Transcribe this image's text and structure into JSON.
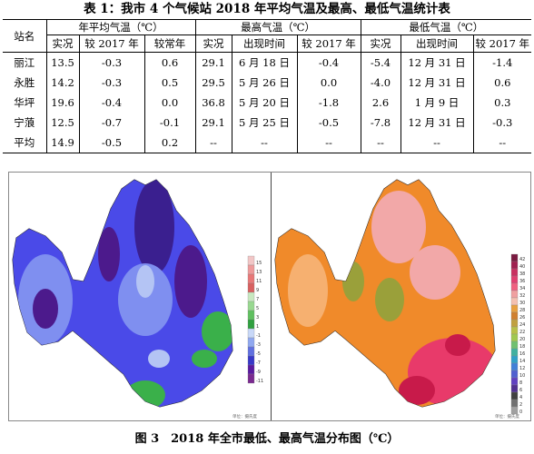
{
  "table": {
    "title": "表 1：我市 4 个气候站 2018 年平均气温及最高、最低气温统计表",
    "station_header": "站名",
    "groups": [
      {
        "label": "年平均气温（℃）",
        "cols": [
          "实况",
          "较 2017 年",
          "较常年"
        ]
      },
      {
        "label": "最高气温（℃）",
        "cols": [
          "实况",
          "出现时间",
          "较 2017 年"
        ]
      },
      {
        "label": "最低气温（℃）",
        "cols": [
          "实况",
          "出现时间",
          "较 2017 年"
        ]
      }
    ],
    "rows": [
      {
        "station": "丽江",
        "cells": [
          "13.5",
          "-0.3",
          "0.6",
          "29.1",
          "6 月 18 日",
          "-0.4",
          "-5.4",
          "12 月 31 日",
          "-1.4"
        ]
      },
      {
        "station": "永胜",
        "cells": [
          "14.2",
          "-0.3",
          "0.5",
          "29.5",
          "5 月 26 日",
          "0.0",
          "-4.0",
          "12 月 31 日",
          "0.6"
        ]
      },
      {
        "station": "华坪",
        "cells": [
          "19.6",
          "-0.4",
          "0.0",
          "36.8",
          "5 月 20 日",
          "-1.8",
          "2.6",
          "1 月 9 日",
          "0.3"
        ]
      },
      {
        "station": "宁蒗",
        "cells": [
          "12.5",
          "-0.7",
          "-0.1",
          "29.1",
          "5 月 25 日",
          "-0.5",
          "-7.8",
          "12 月 31 日",
          "-0.3"
        ]
      },
      {
        "station": "平均",
        "cells": [
          "14.9",
          "-0.5",
          "0.2",
          "--",
          "--",
          "--",
          "--",
          "--",
          "--"
        ]
      }
    ]
  },
  "maps": {
    "left_legend": {
      "labels": [
        "15",
        "13",
        "11",
        "9",
        "7",
        "5",
        "3",
        "1",
        "-1",
        "-3",
        "-5",
        "-7",
        "-9",
        "-11"
      ],
      "colors": [
        "#f2c6c6",
        "#ee9a9a",
        "#e87878",
        "#d86060",
        "#c8e8c0",
        "#98d890",
        "#60c060",
        "#30a040",
        "#c8d8f8",
        "#90a8f0",
        "#6070e0",
        "#3838c8",
        "#5a1aa0",
        "#7a2a90"
      ]
    },
    "right_legend": {
      "labels": [
        "42",
        "40",
        "38",
        "36",
        "34",
        "32",
        "30",
        "28",
        "26",
        "24",
        "22",
        "20",
        "18",
        "16",
        "14",
        "12",
        "10",
        "8",
        "6",
        "4",
        "2",
        "0"
      ],
      "colors": [
        "#7a1a40",
        "#a02050",
        "#c83060",
        "#e04070",
        "#f06080",
        "#f0a0a0",
        "#f4c0b0",
        "#e8a040",
        "#d08030",
        "#c0a040",
        "#b8c048",
        "#a0c850",
        "#70c070",
        "#40b0a0",
        "#30a0c8",
        "#4080d8",
        "#5060d0",
        "#6040c0",
        "#503090",
        "#404040",
        "#707070",
        "#a0a0a0"
      ]
    },
    "unit_label": "单位：摄氏度",
    "palette": {
      "cold_base": "#4a4ae8",
      "cold_light": "#7f8ff0",
      "cold_pale": "#b4c4f4",
      "cold_deep": "#3a1f8f",
      "cold_purple": "#4c1a8c",
      "cold_green": "#3ab04a",
      "hot_base": "#f08a2a",
      "hot_light": "#f6b070",
      "hot_pink": "#f2a8a8",
      "hot_red": "#e83a6a",
      "hot_deep": "#c81a4a",
      "hot_olive": "#9aa03a"
    }
  },
  "caption": "图 3　2018 年全市最低、最高气温分布图（℃）"
}
